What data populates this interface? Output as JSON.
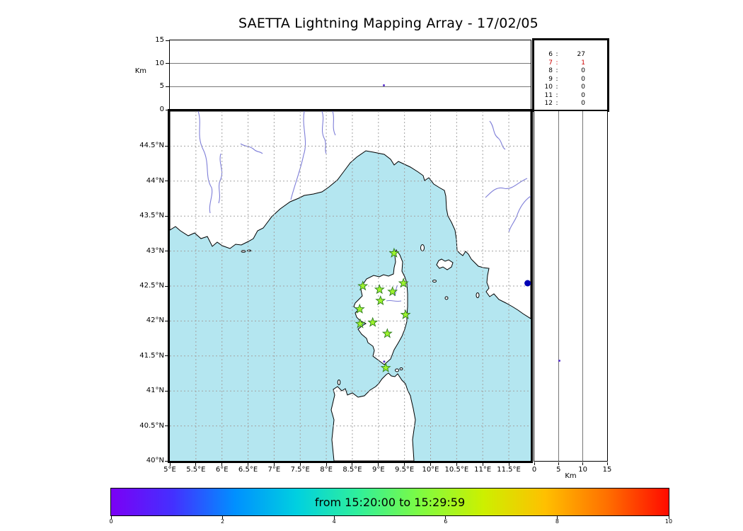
{
  "chart_data": {
    "type": "scatter",
    "title": "SAETTA Lightning Mapping Array - 17/02/05",
    "map": {
      "lon_range": [
        5,
        11.92
      ],
      "lat_range": [
        40,
        45
      ],
      "grid": true,
      "sea_color": "#b4e6f0",
      "land_color": "#ffffff",
      "river_color": "#7e7ed8",
      "station_color": "#9ef32e",
      "station_edge_color": "#2e7d1e",
      "lon_ticks": [
        {
          "value": 5,
          "label": "5°E"
        },
        {
          "value": 5.5,
          "label": "5.5°E"
        },
        {
          "value": 6,
          "label": "6°E"
        },
        {
          "value": 6.5,
          "label": "6.5°E"
        },
        {
          "value": 7,
          "label": "7°E"
        },
        {
          "value": 7.5,
          "label": "7.5°E"
        },
        {
          "value": 8,
          "label": "8°E"
        },
        {
          "value": 8.5,
          "label": "8.5°E"
        },
        {
          "value": 9,
          "label": "9°E"
        },
        {
          "value": 9.5,
          "label": "9.5°E"
        },
        {
          "value": 10,
          "label": "10°E"
        },
        {
          "value": 10.5,
          "label": "10.5°E"
        },
        {
          "value": 11,
          "label": "11°E"
        },
        {
          "value": 11.5,
          "label": "11.5°E"
        }
      ],
      "lat_ticks": [
        {
          "value": 44.5,
          "label": "44.5°N"
        },
        {
          "value": 44,
          "label": "44°N"
        },
        {
          "value": 43.5,
          "label": "43.5°N"
        },
        {
          "value": 43,
          "label": "43°N"
        },
        {
          "value": 42.5,
          "label": "42.5°N"
        },
        {
          "value": 42,
          "label": "42°N"
        },
        {
          "value": 41.5,
          "label": "41.5°N"
        },
        {
          "value": 41,
          "label": "41°N"
        },
        {
          "value": 40.5,
          "label": "40.5°N"
        },
        {
          "value": 40,
          "label": "40°N"
        }
      ],
      "stations": [
        [
          9.3,
          42.97
        ],
        [
          8.7,
          42.5
        ],
        [
          9.02,
          42.45
        ],
        [
          9.27,
          42.42
        ],
        [
          9.48,
          42.54
        ],
        [
          9.04,
          42.29
        ],
        [
          8.64,
          42.17
        ],
        [
          9.52,
          42.09
        ],
        [
          8.65,
          41.96
        ],
        [
          8.89,
          41.98
        ],
        [
          9.17,
          41.82
        ],
        [
          9.14,
          41.33
        ]
      ],
      "sources": [
        {
          "lon": 11.86,
          "lat": 42.54,
          "color": "#0000b4",
          "size": 4.5
        },
        {
          "lon": 9.11,
          "lat": 41.42,
          "color": "#5a33cc",
          "size": 1.5
        }
      ]
    },
    "alt_lon": {
      "ylabel": "Km",
      "alt_range_km": [
        0,
        15
      ],
      "axis_ticks_km": [
        0,
        5,
        10,
        15
      ],
      "points": [
        {
          "lon": 9.11,
          "alt_km": 5.3,
          "color": "#5a33cc"
        }
      ]
    },
    "alt_lat": {
      "xlabel": "Km",
      "alt_range_km": [
        0,
        15
      ],
      "axis_ticks_km": [
        0,
        5,
        10,
        15
      ],
      "points": [
        {
          "lat": 41.43,
          "alt_km": 5.1,
          "color": "#5a33cc"
        }
      ]
    },
    "station_stats": {
      "rows": [
        {
          "n": "6",
          "count": "27",
          "color": "#000000"
        },
        {
          "n": "7",
          "count": "1",
          "color": "#cc0000"
        },
        {
          "n": "8",
          "count": "0",
          "color": "#000000"
        },
        {
          "n": "9",
          "count": "0",
          "color": "#000000"
        },
        {
          "n": "10",
          "count": "0",
          "color": "#000000"
        },
        {
          "n": "11",
          "count": "0",
          "color": "#000000"
        },
        {
          "n": "12",
          "count": "0",
          "color": "#000000"
        }
      ]
    },
    "colorbar": {
      "label": "from 15:20:00 to 15:29:59",
      "range": [
        0,
        10
      ],
      "ticks": [
        "0",
        "2",
        "4",
        "6",
        "8",
        "10"
      ],
      "gradient": [
        "#7b00f5",
        "#4430ff",
        "#0090ff",
        "#00d0e0",
        "#30f09a",
        "#80fb40",
        "#ccf000",
        "#ffc000",
        "#ff7000",
        "#ff0a00"
      ]
    }
  }
}
